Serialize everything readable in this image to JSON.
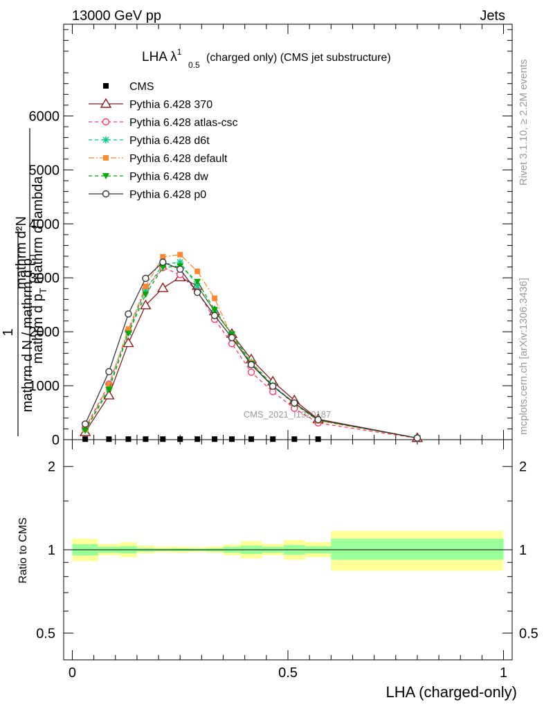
{
  "header": {
    "left": "13000 GeV pp",
    "right": "Jets"
  },
  "side_labels": {
    "rivet": "Rivet 3.1.10, ≥ 2.2M events",
    "mcplots": "mcplots.cern.ch [arXiv:1306.3436]"
  },
  "watermark": "CMS_2021_I1920187",
  "chart_data": [
    {
      "type": "line",
      "title_main": "LHA λ",
      "title_sup": "1",
      "title_sub": "0.5",
      "title_rest": " (charged only) (CMS jet substructure)",
      "ylabel_numerator": "mathrm d²N",
      "ylabel_denominator": "mathrm d p",
      "ylabel_denominator_sub": "T",
      "ylabel_denominator_rest": " mathrm d lambda",
      "ylabel_prefix_top": "1",
      "ylabel_prefix_bottom": "mathrm d N / mathrm d p",
      "ylabel_prefix_sub": "T",
      "xlim": [
        -0.02,
        1.02
      ],
      "ylim": [
        0,
        7700
      ],
      "yticks": [
        0,
        1000,
        2000,
        3000,
        4000,
        5000,
        6000
      ],
      "ytick_labels": [
        "0",
        "1000",
        "2000",
        "3000",
        "4000",
        "5000",
        "6000"
      ],
      "legend_placement": "top-left",
      "x": [
        0.03,
        0.085,
        0.13,
        0.17,
        0.21,
        0.25,
        0.29,
        0.33,
        0.37,
        0.415,
        0.465,
        0.515,
        0.57,
        0.8
      ],
      "series": [
        {
          "name": "CMS",
          "color": "#000000",
          "marker": "square",
          "line": "none",
          "values": [
            10,
            10,
            10,
            10,
            10,
            10,
            10,
            10,
            10,
            10,
            10,
            10,
            10,
            null
          ]
        },
        {
          "name": "Pythia 6.428 370",
          "color": "#8b1a1a",
          "marker": "triangle-open",
          "line": "solid",
          "values": [
            140,
            820,
            1790,
            2490,
            2810,
            3010,
            2850,
            2380,
            1960,
            1490,
            1080,
            730,
            380,
            30
          ]
        },
        {
          "name": "Pythia 6.428 atlas-csc",
          "color": "#ff3366",
          "marker": "circle-open",
          "line": "dashed",
          "values": [
            220,
            1030,
            2020,
            2790,
            3190,
            3060,
            2750,
            2230,
            1780,
            1250,
            890,
            580,
            310,
            25
          ]
        },
        {
          "name": "Pythia 6.428 d6t",
          "color": "#00cc88",
          "marker": "star",
          "line": "dashed",
          "values": [
            180,
            970,
            1990,
            2770,
            3250,
            3290,
            2850,
            2390,
            1960,
            1440,
            1010,
            680,
            370,
            30
          ]
        },
        {
          "name": "Pythia 6.428 default",
          "color": "#ff8833",
          "marker": "square",
          "line": "dashdot",
          "values": [
            190,
            1020,
            2050,
            2840,
            3390,
            3430,
            3120,
            2620,
            1910,
            1430,
            990,
            670,
            350,
            30
          ]
        },
        {
          "name": "Pythia 6.428 dw",
          "color": "#00aa00",
          "marker": "triangle-down",
          "line": "dashed",
          "values": [
            170,
            930,
            1970,
            2690,
            3190,
            3220,
            2930,
            2410,
            1950,
            1410,
            1000,
            660,
            360,
            30
          ]
        },
        {
          "name": "Pythia 6.428 p0",
          "color": "#333333",
          "marker": "circle-open",
          "line": "solid",
          "values": [
            290,
            1260,
            2330,
            2990,
            3290,
            3160,
            2730,
            2300,
            1890,
            1390,
            990,
            680,
            370,
            30
          ]
        }
      ]
    },
    {
      "type": "area",
      "ylabel": "Ratio to CMS",
      "xlabel": "LHA (charged-only)",
      "log_scale": true,
      "ylim": [
        0.4,
        2.5
      ],
      "yticks": [
        0.5,
        1,
        2
      ],
      "ytick_labels": [
        "0.5",
        "1",
        "2"
      ],
      "xticks": [
        0,
        0.5,
        1
      ],
      "xtick_labels": [
        "0",
        "0.5",
        "1"
      ],
      "band_colors": {
        "inner": "#99ff99",
        "outer": "#ffff99"
      },
      "reference_line": 1,
      "bins": [
        {
          "lo": 0.0,
          "hi": 0.06,
          "inner": [
            0.953,
            1.047
          ],
          "outer": [
            0.91,
            1.095
          ]
        },
        {
          "lo": 0.06,
          "hi": 0.11,
          "inner": [
            0.975,
            1.025
          ],
          "outer": [
            0.955,
            1.05
          ]
        },
        {
          "lo": 0.11,
          "hi": 0.15,
          "inner": [
            0.97,
            1.03
          ],
          "outer": [
            0.94,
            1.065
          ]
        },
        {
          "lo": 0.15,
          "hi": 0.19,
          "inner": [
            0.985,
            1.015
          ],
          "outer": [
            0.97,
            1.035
          ]
        },
        {
          "lo": 0.19,
          "hi": 0.23,
          "inner": [
            0.99,
            1.01
          ],
          "outer": [
            0.98,
            1.025
          ]
        },
        {
          "lo": 0.23,
          "hi": 0.27,
          "inner": [
            0.988,
            1.012
          ],
          "outer": [
            0.975,
            1.028
          ]
        },
        {
          "lo": 0.27,
          "hi": 0.31,
          "inner": [
            0.99,
            1.01
          ],
          "outer": [
            0.982,
            1.022
          ]
        },
        {
          "lo": 0.31,
          "hi": 0.35,
          "inner": [
            0.987,
            1.013
          ],
          "outer": [
            0.975,
            1.028
          ]
        },
        {
          "lo": 0.35,
          "hi": 0.39,
          "inner": [
            0.975,
            1.025
          ],
          "outer": [
            0.955,
            1.045
          ]
        },
        {
          "lo": 0.39,
          "hi": 0.44,
          "inner": [
            0.965,
            1.035
          ],
          "outer": [
            0.93,
            1.075
          ]
        },
        {
          "lo": 0.44,
          "hi": 0.49,
          "inner": [
            0.975,
            1.025
          ],
          "outer": [
            0.955,
            1.05
          ]
        },
        {
          "lo": 0.49,
          "hi": 0.54,
          "inner": [
            0.96,
            1.04
          ],
          "outer": [
            0.92,
            1.085
          ]
        },
        {
          "lo": 0.54,
          "hi": 0.6,
          "inner": [
            0.97,
            1.03
          ],
          "outer": [
            0.94,
            1.065
          ]
        },
        {
          "lo": 0.6,
          "hi": 1.0,
          "inner": [
            0.92,
            1.095
          ],
          "outer": [
            0.84,
            1.17
          ]
        }
      ]
    }
  ]
}
